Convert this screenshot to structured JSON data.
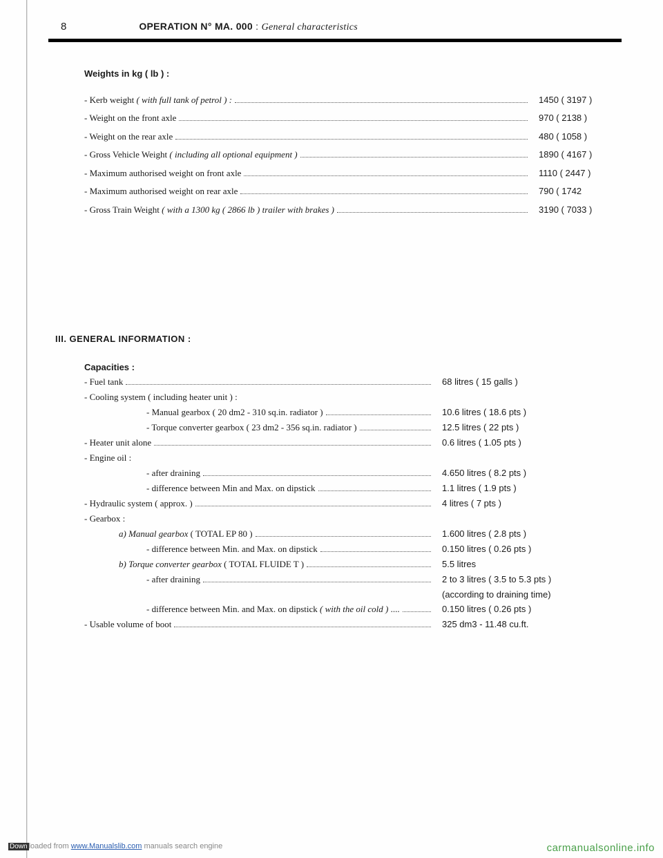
{
  "header": {
    "page_number": "8",
    "operation_label": "OPERATION N°",
    "operation_code": "MA. 000",
    "operation_sep": ":",
    "operation_sub": "General characteristics"
  },
  "weights": {
    "title": "Weights in kg ( lb ) :",
    "rows": [
      {
        "prefix": "- Kerb weight ",
        "italic": "( with full tank of petrol ) :",
        "value": "1450 ( 3197 )"
      },
      {
        "prefix": "- Weight on the front axle",
        "italic": "",
        "value": "970 ( 2138 )"
      },
      {
        "prefix": "- Weight on the rear axle",
        "italic": "",
        "value": "480 ( 1058 )"
      },
      {
        "prefix": "- Gross Vehicle Weight ",
        "italic": "( including all optional equipment )",
        "value": "1890 ( 4167 )"
      },
      {
        "prefix": "- Maximum authorised weight on front axle",
        "italic": "",
        "value": "1110 ( 2447 )"
      },
      {
        "prefix": "- Maximum authorised weight on rear axle",
        "italic": "",
        "value": "790 ( 1742"
      },
      {
        "prefix": "- Gross Train Weight ",
        "italic": "( with a 1300 kg ( 2866 lb ) trailer with brakes )",
        "value": "3190 ( 7033 )"
      }
    ]
  },
  "section3": {
    "heading": "III. GENERAL INFORMATION :",
    "capacities_title": "Capacities :",
    "items": [
      {
        "type": "row",
        "indent": 0,
        "prefix": "- Fuel tank",
        "italic": "",
        "value": "68 litres ( 15 galls )"
      },
      {
        "type": "plain",
        "indent": 0,
        "text": "- Cooling system ",
        "italic": "( including heater unit ) :"
      },
      {
        "type": "row",
        "indent": 2,
        "prefix": "- Manual gearbox ( 20 dm2 - 310 sq.in. radiator )",
        "value": "10.6 litres ( 18.6 pts )"
      },
      {
        "type": "row",
        "indent": 2,
        "prefix": "- Torque converter gearbox ( 23 dm2 - 356 sq.in. radiator )",
        "value": "12.5 litres ( 22 pts )"
      },
      {
        "type": "row",
        "indent": 0,
        "prefix": "- Heater unit alone",
        "value": "0.6 litres ( 1.05 pts )"
      },
      {
        "type": "plain",
        "indent": 0,
        "text": "- Engine oil :"
      },
      {
        "type": "row",
        "indent": 2,
        "prefix": "- after draining",
        "value": "4.650 litres ( 8.2 pts )"
      },
      {
        "type": "row",
        "indent": 2,
        "prefix": "- difference between Min and Max. on dipstick",
        "value": "1.1 litres ( 1.9 pts )"
      },
      {
        "type": "row",
        "indent": 0,
        "prefix": "- Hydraulic system ( approx. )",
        "value": "4 litres (   7 pts )"
      },
      {
        "type": "plain",
        "indent": 0,
        "text": "- Gearbox :"
      },
      {
        "type": "row",
        "indent": 1,
        "prefix_italic": "a) Manual gearbox",
        "prefix": " ( TOTAL EP 80 )",
        "value": "1.600 litres ( 2.8 pts )"
      },
      {
        "type": "row",
        "indent": 2,
        "prefix": "- difference between Min. and Max. on dipstick",
        "value": "0.150 litres ( 0.26 pts )"
      },
      {
        "type": "row",
        "indent": 1,
        "prefix_italic": "b) Torque converter gearbox",
        "prefix": " ( TOTAL FLUIDE T )",
        "value": "5.5 litres"
      },
      {
        "type": "row",
        "indent": 2,
        "prefix": "- after draining",
        "value": "2 to 3 litres ( 3.5 to 5.3 pts )"
      },
      {
        "type": "note",
        "indent": 2,
        "text": "(according to draining time)"
      },
      {
        "type": "row",
        "indent": 2,
        "prefix": "- difference between Min. and Max. on dipstick ",
        "italic": "( with the oil cold )",
        "suffix": " ....",
        "value": "0.150 litres ( 0.26 pts )"
      },
      {
        "type": "row",
        "indent": 0,
        "prefix": "- Usable volume of boot",
        "value": "325 dm3  -  11.48 cu.ft."
      }
    ]
  },
  "footer": {
    "download_prefix": "Down",
    "download_text": "loaded from ",
    "download_link": "www.Manualslib.com",
    "download_suffix": " manuals search engine",
    "site": "carmanualsonline.info"
  }
}
